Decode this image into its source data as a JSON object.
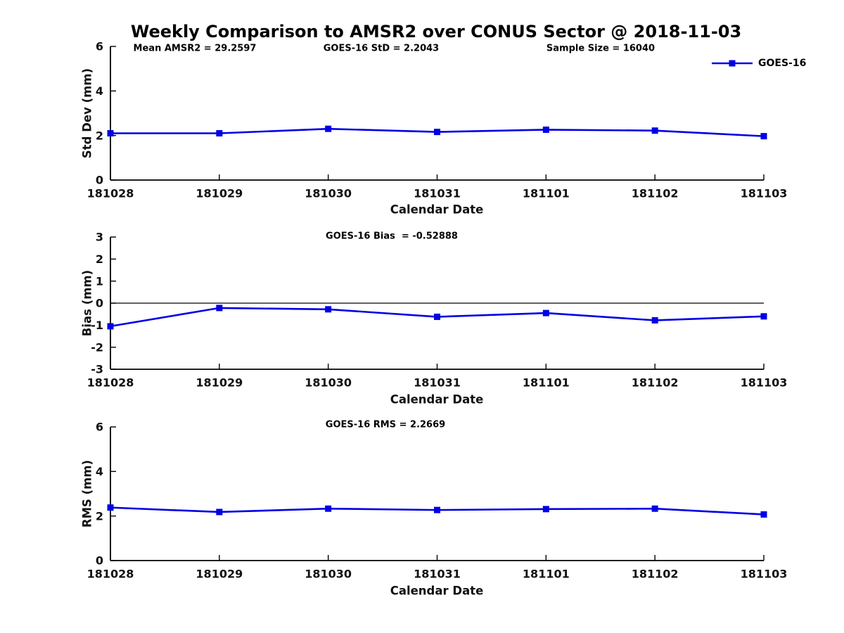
{
  "figure": {
    "title": "Weekly Comparison to AMSR2 over CONUS Sector @ 2018-11-03",
    "background_color": "#ffffff",
    "line_color": "#0000e6",
    "axis_color": "#000000",
    "text_color": "#111111"
  },
  "chart_data": [
    {
      "type": "line",
      "id": "std-dev",
      "ylabel": "Std Dev (mm)",
      "xlabel": "Calendar Date",
      "categories": [
        "181028",
        "181029",
        "181030",
        "181031",
        "181101",
        "181102",
        "181103"
      ],
      "series": [
        {
          "name": "GOES-16",
          "values": [
            2.1,
            2.1,
            2.3,
            2.16,
            2.26,
            2.22,
            1.97
          ]
        }
      ],
      "ylim": [
        0,
        6
      ],
      "yticks": [
        0,
        2,
        4,
        6
      ],
      "annotations": [
        "Mean AMSR2 = 29.2597",
        "GOES-16 StD = 2.2043",
        "Sample Size = 16040"
      ],
      "grid": false,
      "legend": "top-right",
      "marker": "square"
    },
    {
      "type": "line",
      "id": "bias",
      "title": "GOES-16 Bias  = -0.52888",
      "ylabel": "Bias (mm)",
      "xlabel": "Calendar Date",
      "categories": [
        "181028",
        "181029",
        "181030",
        "181031",
        "181101",
        "181102",
        "181103"
      ],
      "series": [
        {
          "name": "GOES-16",
          "values": [
            -1.05,
            -0.22,
            -0.28,
            -0.62,
            -0.45,
            -0.78,
            -0.6
          ]
        }
      ],
      "ylim": [
        -3,
        3
      ],
      "yticks": [
        -3,
        -2,
        -1,
        0,
        1,
        2,
        3
      ],
      "zero_line": true,
      "grid": false,
      "marker": "square"
    },
    {
      "type": "line",
      "id": "rms",
      "title": "GOES-16 RMS = 2.2669",
      "ylabel": "RMS (mm)",
      "xlabel": "Calendar Date",
      "categories": [
        "181028",
        "181029",
        "181030",
        "181031",
        "181101",
        "181102",
        "181103"
      ],
      "series": [
        {
          "name": "GOES-16",
          "values": [
            2.38,
            2.18,
            2.33,
            2.27,
            2.31,
            2.33,
            2.07
          ]
        }
      ],
      "ylim": [
        0,
        6
      ],
      "yticks": [
        0,
        2,
        4,
        6
      ],
      "grid": false,
      "marker": "square"
    }
  ]
}
